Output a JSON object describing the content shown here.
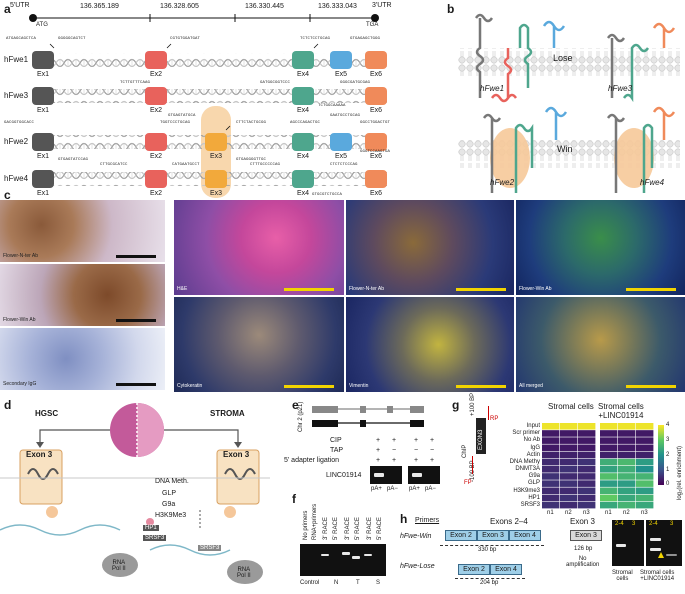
{
  "panels": {
    "a": {
      "label": "a",
      "utr5": "5'UTR",
      "utr3": "3'UTR",
      "coords": [
        "136.365.189",
        "136.328.605",
        "136.330.445",
        "136.333.043"
      ],
      "atg": "ATG",
      "tga": "TGA",
      "isoforms": [
        {
          "name": "hFwe1",
          "exons": [
            "Ex1",
            "Ex2",
            "Ex4",
            "Ex5",
            "Ex6"
          ]
        },
        {
          "name": "hFwe3",
          "exons": [
            "Ex1",
            "Ex2",
            "Ex4",
            "Ex6"
          ]
        },
        {
          "name": "hFwe2",
          "exons": [
            "Ex1",
            "Ex2",
            "Ex3",
            "Ex4",
            "Ex5",
            "Ex6"
          ]
        },
        {
          "name": "hFwe4",
          "exons": [
            "Ex1",
            "Ex2",
            "Ex3",
            "Ex4",
            "Ex6"
          ]
        }
      ],
      "seqs": {
        "s1": "ATGAGCAGCTCA",
        "s2": "GGGGGCAGTCT",
        "s3": "CGTGTGGATGAT",
        "s4": "TCTCTCCTGCAG",
        "s5": "GTGAGAGCTGGG",
        "s6": "TCTTGTTTCAAG",
        "s7": "GTGAGTATGCA",
        "s8": "GATGGCGGTCCC",
        "s9": "TCTGGCAAAAA",
        "s10": "GGGCGATGCGAG",
        "s11": "GACGGTGGCACC",
        "s12": "GTGAGTATCCAG",
        "s13": "TGGTCCCTGCAG",
        "s14": "CTTCTACTGCGG",
        "s15": "GTGAGGGGTTGC",
        "s16": "AGCCCAGACTGC",
        "s17": "GAATGCCTGCAG",
        "s18": "GGCCTGGACTGT",
        "s19": "CTTGCGCATCC",
        "s20": "CATGAATGCCT",
        "s21": "CTTTGCCCCCAG",
        "s22": "CTCTCTCCCAG",
        "s23": "GGGTCCAAGTGA",
        "s24": "GTGCGTCTGCCA"
      }
    },
    "b": {
      "label": "b",
      "lose": "Lose",
      "win": "Win",
      "fwe1": "hFwe1",
      "fwe3": "hFwe3",
      "fwe2": "hFwe2",
      "fwe4": "hFwe4"
    },
    "c": {
      "label": "c",
      "ihc": [
        "Flower-N-ter Ab",
        "Flower-Win Ab",
        "Secondary IgG"
      ],
      "fluor": [
        "H&E",
        "Flower-N-ter Ab",
        "Flower-Win Ab",
        "Cytokeratin",
        "Vimentin",
        "All merged"
      ]
    },
    "d": {
      "label": "d",
      "hgsc": "HGSC",
      "stroma": "STROMA",
      "exon3": "Exon 3",
      "exon3b": "Exon 3",
      "polii": "RNA\nPol II",
      "polii2": "RNA\nPol II",
      "dnameth": "DNA Meth.",
      "glp": "GLP",
      "g9a": "G9a",
      "h3k9": "H3K9Me3",
      "hp1": "HP1",
      "srsf3": "SRSF3",
      "srsf3b": "SRSF3"
    },
    "e": {
      "label": "e",
      "chr": "Chr 2 (p21)",
      "rows": [
        "CIP",
        "TAP",
        "5' adapter ligation"
      ],
      "signs_left": [
        [
          "+",
          "+"
        ],
        [
          "+",
          "−"
        ],
        [
          "+",
          "+"
        ]
      ],
      "signs_right": [
        [
          "+",
          "+"
        ],
        [
          "−",
          "−"
        ],
        [
          "+",
          "+"
        ]
      ],
      "gene": "LINC01914",
      "lanes": [
        "pA+",
        "pA−",
        "pA+",
        "pA−"
      ]
    },
    "f": {
      "label": "f",
      "lanes": [
        "No primers",
        "RNA+primers",
        "3' RACE",
        "5' RACE",
        "3' RACE",
        "5' RACE",
        "3' RACE",
        "5' RACE"
      ],
      "groups": [
        "Control",
        "N",
        "T",
        "S"
      ]
    },
    "g": {
      "label": "g",
      "title_left": "Stromal cells",
      "title_right": "Stromal cells\n+LINC01914",
      "rows": [
        "Input",
        "Scr primer",
        "No Ab",
        "IgG",
        "Actin",
        "DNA Methy",
        "DNMT3A",
        "G9a",
        "GLP",
        "H3K9me3",
        "HP1",
        "SRSF3"
      ],
      "cols": [
        "n1",
        "n2",
        "n3",
        "n1",
        "n2",
        "n3"
      ],
      "chip": "ChIP",
      "exon3": "EXON3",
      "plus100": "+100 BP",
      "minus100": "-100 BP",
      "rp": "RP",
      "fp": "FP",
      "scale_ticks": [
        "4",
        "3",
        "2",
        "1",
        "0"
      ],
      "scale_label": "log₂(rel. enrichment)",
      "chart_data": {
        "type": "heatmap",
        "rows": [
          "Input",
          "Scr primer",
          "No Ab",
          "IgG",
          "Actin",
          "DNA Methy",
          "DNMT3A",
          "G9a",
          "GLP",
          "H3K9me3",
          "HP1",
          "SRSF3"
        ],
        "cols": [
          "n1",
          "n2",
          "n3",
          "n1",
          "n2",
          "n3"
        ],
        "values": [
          [
            3.9,
            3.9,
            3.9,
            3.9,
            3.9,
            3.9
          ],
          [
            0.3,
            0.3,
            0.3,
            0.3,
            0.3,
            0.3
          ],
          [
            0.3,
            0.3,
            0.3,
            0.3,
            0.3,
            0.3
          ],
          [
            0.3,
            0.3,
            0.3,
            0.3,
            0.3,
            0.3
          ],
          [
            0.4,
            0.4,
            0.4,
            0.4,
            0.4,
            0.4
          ],
          [
            0.5,
            0.5,
            0.6,
            2.5,
            2.7,
            2.2
          ],
          [
            0.5,
            0.6,
            0.5,
            2.3,
            2.5,
            2.0
          ],
          [
            0.6,
            0.5,
            0.5,
            2.8,
            2.6,
            2.6
          ],
          [
            0.6,
            0.6,
            0.5,
            2.2,
            2.2,
            2.8
          ],
          [
            0.5,
            0.5,
            0.6,
            2.6,
            2.3,
            2.2
          ],
          [
            0.5,
            0.6,
            0.5,
            3.0,
            2.4,
            2.6
          ],
          [
            0.6,
            0.5,
            0.6,
            2.4,
            2.6,
            2.4
          ]
        ],
        "vmin": 0,
        "vmax": 4
      }
    },
    "h": {
      "label": "h",
      "primers": "Primers",
      "exons_title": "Exons 2–4",
      "exon3_title": "Exon 3",
      "win": "hFwe-Win",
      "lose": "hFwe-Lose",
      "ex2": "Exon 2",
      "ex3": "Exon 3",
      "ex4": "Exon 4",
      "ex2b": "Exon 2",
      "ex4b": "Exon 4",
      "ex3b": "Exon 3",
      "bp330": "330 bp",
      "bp204": "204 bp",
      "bp126": "126 bp",
      "noamp": "No\namplification",
      "gel_lanes": [
        "2-4",
        "3",
        "2-4",
        "3"
      ],
      "gel_left": "Stromal\ncells",
      "gel_right": "Stromal cells\n+LINC01914"
    }
  }
}
